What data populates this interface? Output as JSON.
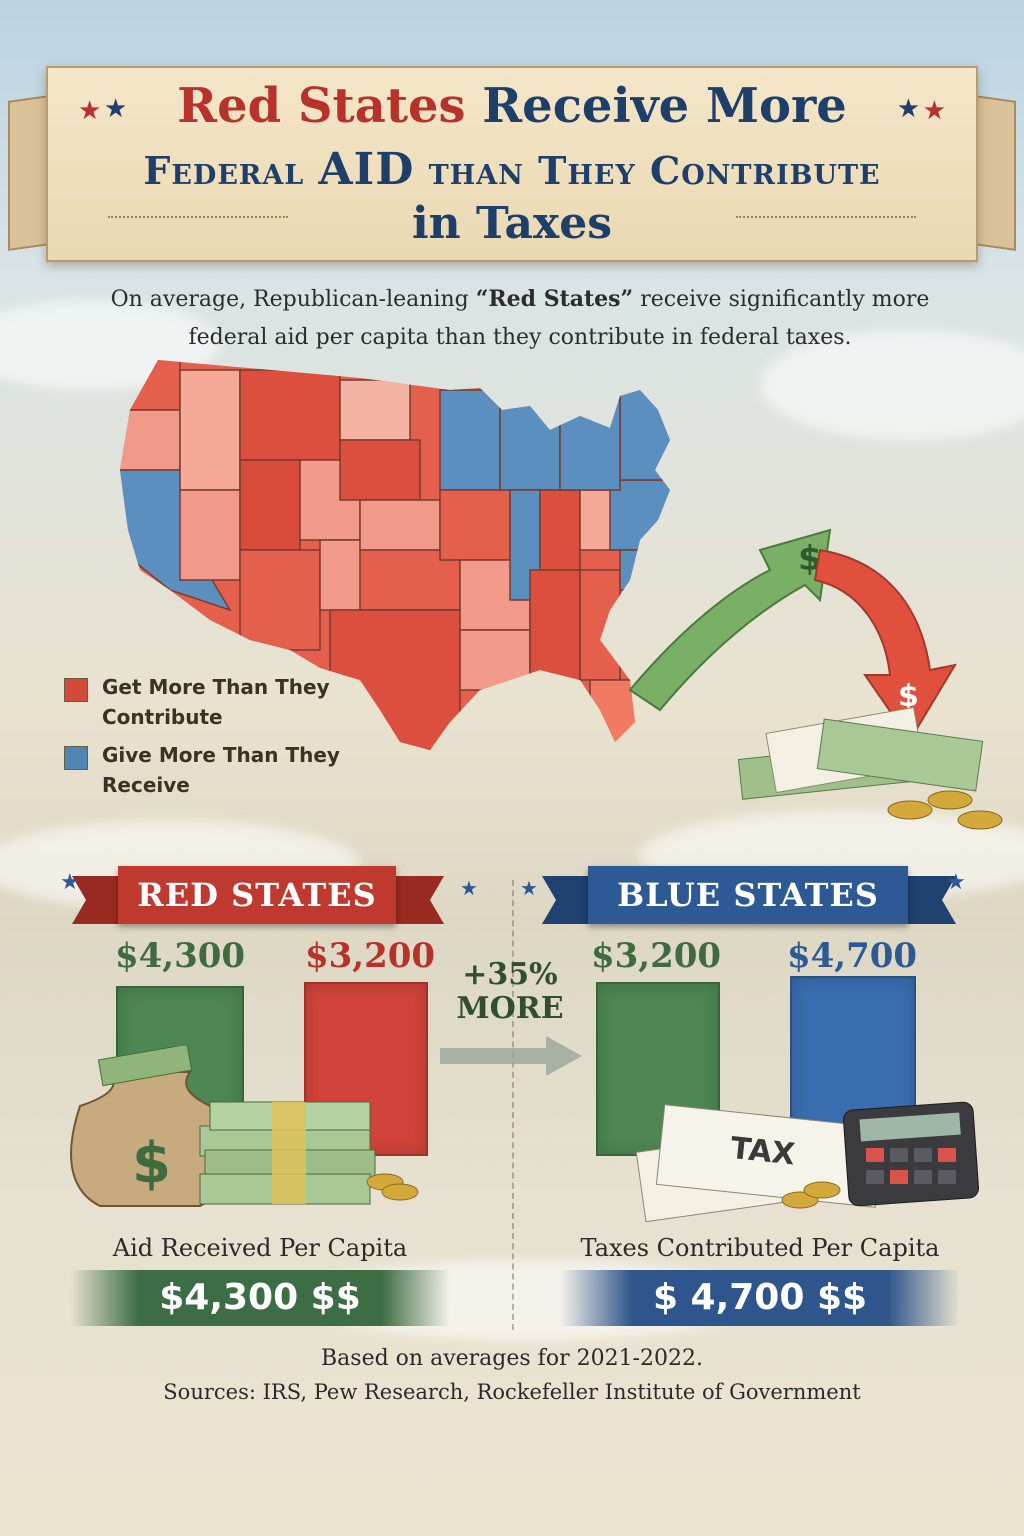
{
  "title": {
    "line1_red": "Red States",
    "line1_blue": "Receive More",
    "line2_a": "Federal",
    "line2_b": "AID",
    "line2_c": "than They Contribute",
    "line3": "in Taxes"
  },
  "subtitle": {
    "prefix": "On average, Republican-leaning ",
    "emphasis": "“Red States”",
    "suffix": " receive significantly more federal aid per capita than they contribute in federal taxes."
  },
  "legend": {
    "red_label": "Get More Than They Contribute",
    "blue_label": "Give More Than They Receive",
    "red_color": "#d24a3a",
    "blue_color": "#4f86b5"
  },
  "red_section": {
    "banner": "RED STATES",
    "bar1_value": "$4,300",
    "bar2_value": "$3,200",
    "bar1_color": "#4d8752",
    "bar2_color": "#d2443a",
    "caption": "Aid Received Per Capita",
    "band_value": "$4,300 $$"
  },
  "blue_section": {
    "banner": "BLUE STATES",
    "bar1_value": "$3,200",
    "bar2_value": "$4,700",
    "bar1_color": "#4d8752",
    "bar2_color": "#3a6db0",
    "caption": "Taxes Contributed Per Capita",
    "band_value": "$ 4,700 $$"
  },
  "comparison": {
    "percent": "+35%",
    "word": "MORE"
  },
  "icons": {
    "money_bag_symbol": "$",
    "arrow_up_symbol": "$",
    "arrow_down_symbol": "$",
    "tax_paper_label": "TAX"
  },
  "footnote": {
    "line1": "Based on averages for 2021-2022.",
    "line2": "Sources: IRS, Pew Research, Rockefeller Institute of Government"
  }
}
